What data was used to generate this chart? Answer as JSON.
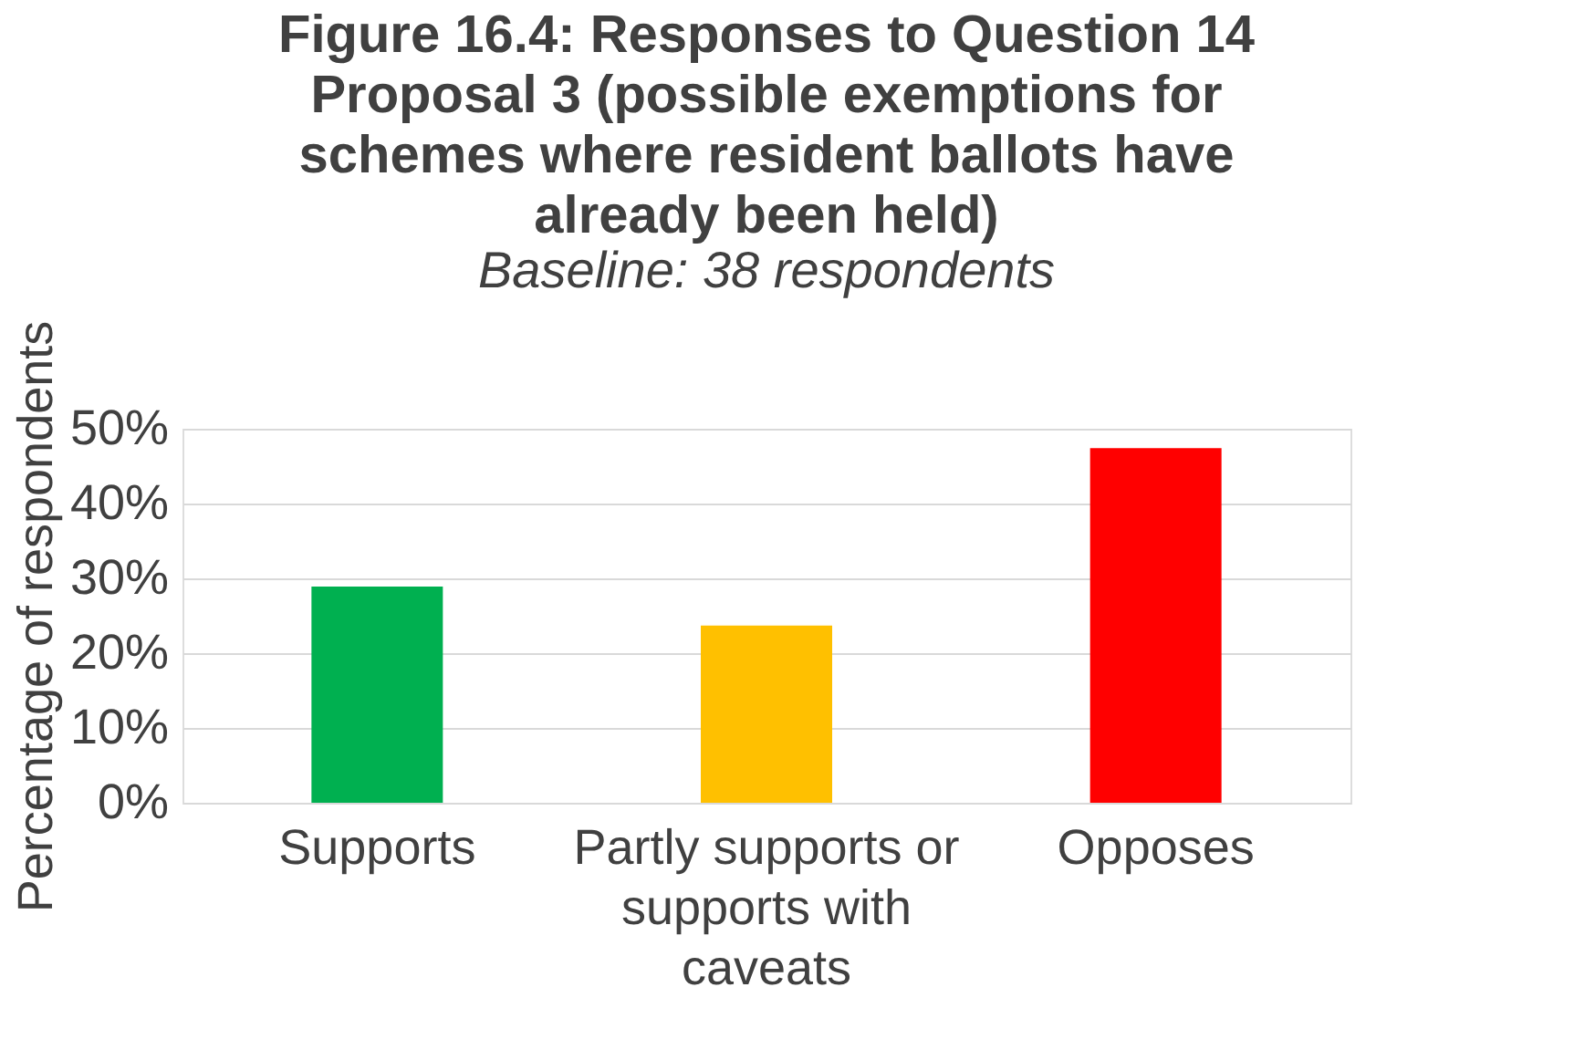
{
  "chart_data": {
    "type": "bar",
    "title": "Figure 16.4: Responses to Question 14 Proposal 3 (possible exemptions for schemes where resident ballots have already been held)",
    "subtitle": "Baseline: 38 respondents",
    "ylabel": "Percentage of respondents",
    "categories": [
      "Supports",
      "Partly supports or supports with caveats",
      "Opposes"
    ],
    "values": [
      28.9,
      23.7,
      47.4
    ],
    "colors": [
      "#00b050",
      "#ffc000",
      "#ff0000"
    ],
    "ylim": [
      0,
      50
    ],
    "yticks": [
      {
        "value": 0,
        "label": "0%"
      },
      {
        "value": 10,
        "label": "10%"
      },
      {
        "value": 20,
        "label": "20%"
      },
      {
        "value": 30,
        "label": "30%"
      },
      {
        "value": 40,
        "label": "40%"
      },
      {
        "value": 50,
        "label": "50%"
      }
    ],
    "grid": "y"
  }
}
